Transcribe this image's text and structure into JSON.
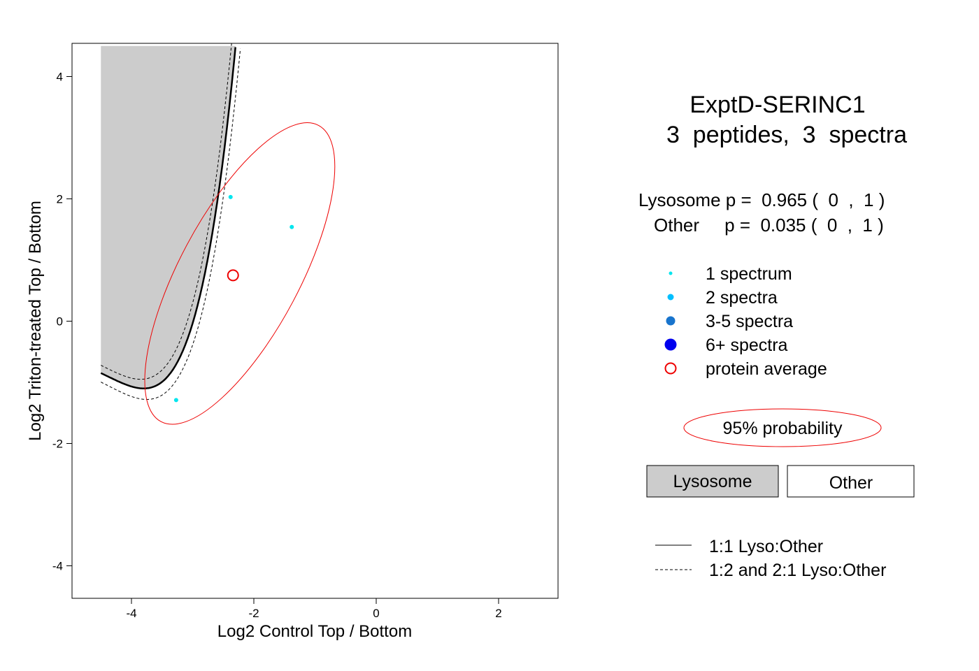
{
  "chart_data": {
    "type": "scatter",
    "xlabel": "Log2 Control Top / Bottom",
    "ylabel": "Log2 Triton-treated Top / Bottom",
    "xlim": [
      -5,
      3
    ],
    "ylim": [
      -4.5,
      4.5
    ],
    "x_ticks": [
      -4,
      -2,
      0,
      2
    ],
    "y_ticks": [
      -4,
      -2,
      0,
      2,
      4
    ],
    "points": [
      {
        "x": -2.38,
        "y": 2.03,
        "spectra": 1
      },
      {
        "x": -1.38,
        "y": 1.54,
        "spectra": 1
      },
      {
        "x": -3.27,
        "y": -1.29,
        "spectra": 1
      }
    ],
    "protein_average": {
      "x": -2.34,
      "y": 0.75
    },
    "confidence_ellipse": {
      "label": "95% probability"
    },
    "title_line1": "ExptD-SERINC1",
    "title_line2": "3  peptides,  3  spectra",
    "probabilities": [
      {
        "class": "Lysosome",
        "p": "0.965",
        "lower": "0",
        "upper": "1"
      },
      {
        "class": "Other",
        "p": "0.035",
        "lower": "0",
        "upper": "1"
      }
    ],
    "p_label": "p =",
    "legend_points": [
      {
        "label": "1 spectrum",
        "color": "#00e5ee"
      },
      {
        "label": "2 spectra",
        "color": "#00bfff"
      },
      {
        "label": "3-5 spectra",
        "color": "#1874cd"
      },
      {
        "label": "6+ spectra",
        "color": "#0000ee"
      },
      {
        "label": "protein average",
        "color": "#ee0000"
      }
    ],
    "legend_regions": {
      "lysosome": "Lysosome",
      "other": "Other"
    },
    "legend_lines": {
      "solid": "1:1 Lyso:Other",
      "dashed": "1:2 and 2:1 Lyso:Other"
    },
    "colors": {
      "region_fill": "#cccccc",
      "ellipse": "#ee0000",
      "point": "#00e5ee"
    }
  }
}
